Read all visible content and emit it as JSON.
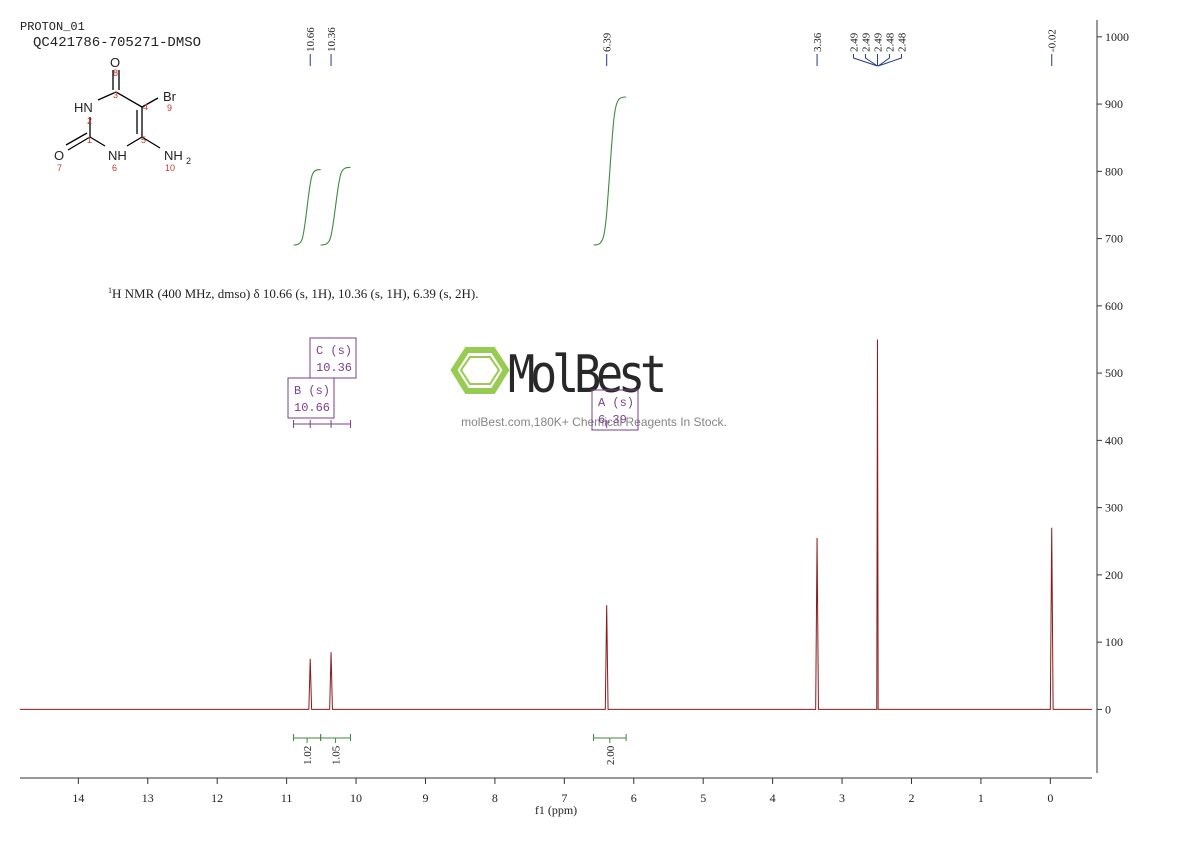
{
  "header": {
    "experiment": "PROTON_01",
    "sample": "QC421786-705271-DMSO"
  },
  "structure": {
    "atoms": [
      "O",
      "HN",
      "Br",
      "O",
      "NH",
      "NH",
      "2"
    ],
    "numbers": [
      "8",
      "3",
      "4",
      "9",
      "2",
      "1",
      "5",
      "7",
      "6",
      "10"
    ]
  },
  "description": {
    "sup": "1",
    "text": "H NMR (400 MHz, dmso) δ 10.66 (s, 1H), 10.36 (s, 1H), 6.39 (s, 2H)."
  },
  "watermark": {
    "logo": "MolBest",
    "tagline": "molBest.com,180K+ Chemical Reagents In Stock."
  },
  "chart_data": {
    "type": "nmr",
    "x_label": "f1  (ppm)",
    "color": "#8b1a1a",
    "x": [
      14.84,
      10.75,
      10.68,
      10.66,
      10.64,
      10.4,
      10.38,
      10.36,
      10.34,
      6.45,
      6.41,
      6.39,
      6.37,
      3.42,
      3.38,
      3.36,
      3.34,
      2.53,
      2.5,
      2.49,
      2.48,
      2.46,
      0.04,
      0.0,
      -0.02,
      -0.04,
      -0.6
    ],
    "values": [
      0,
      0,
      0,
      75,
      0,
      0,
      0,
      85,
      0,
      0,
      0,
      155,
      0,
      0,
      0,
      255,
      0,
      0,
      0,
      550,
      0,
      0,
      0,
      0,
      270,
      0,
      0
    ],
    "xlim": [
      14.84,
      -0.6
    ],
    "xticks": [
      14,
      13,
      12,
      11,
      10,
      9,
      8,
      7,
      6,
      5,
      4,
      3,
      2,
      1,
      0
    ],
    "ylim": [
      -102,
      1025
    ],
    "yticks": [
      0,
      100,
      200,
      300,
      400,
      500,
      600,
      700,
      800,
      900,
      1000
    ],
    "peaks": [
      10.66,
      10.36,
      6.39,
      3.36,
      2.49,
      2.49,
      2.49,
      2.48,
      2.48,
      -0.02
    ],
    "integrals": [
      {
        "from": 10.9,
        "to": 10.51,
        "value": 1.02
      },
      {
        "from": 10.51,
        "to": 10.08,
        "value": 1.05
      },
      {
        "from": 6.58,
        "to": 6.11,
        "value": 2.0,
        "label": "2.00"
      }
    ],
    "multiplets": [
      {
        "name": "C (s)",
        "shift": 10.36
      },
      {
        "name": "B (s)",
        "shift": 10.66
      },
      {
        "name": "A (s)",
        "shift": 6.39
      }
    ]
  }
}
